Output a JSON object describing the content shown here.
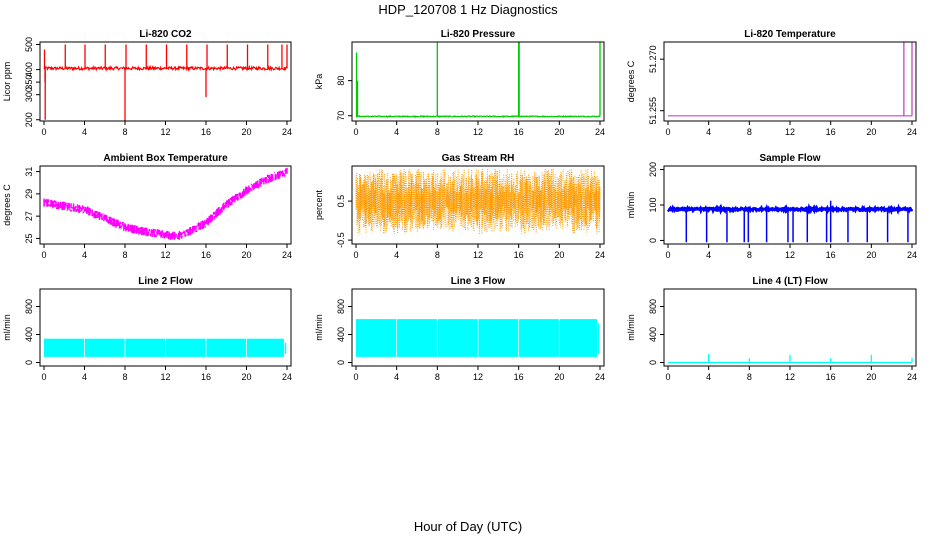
{
  "figure": {
    "title": "HDP_120708  1 Hz Diagnostics",
    "xlabel": "Hour of Day (UTC)"
  },
  "chart_data": [
    {
      "type": "line",
      "title": "Li-820 CO2",
      "ylabel": "Licor ppm",
      "color": "#ff0000",
      "xlim": [
        0,
        24
      ],
      "xticks": [
        "0",
        "4",
        "8",
        "12",
        "16",
        "20",
        "24"
      ],
      "ylim": [
        195,
        510
      ],
      "yticks": [
        200,
        300,
        350,
        400,
        500
      ],
      "ytick_labels": [
        "200",
        "300",
        "350",
        "400",
        "500"
      ],
      "baseline": 405,
      "noise": 6,
      "spikes": [
        [
          0.05,
          480
        ],
        [
          0.1,
          350
        ],
        [
          0.12,
          200
        ],
        [
          2.1,
          500
        ],
        [
          4.05,
          500
        ],
        [
          6.05,
          500
        ],
        [
          8.0,
          195
        ],
        [
          8.1,
          500
        ],
        [
          10.1,
          500
        ],
        [
          12.1,
          500
        ],
        [
          14.1,
          500
        ],
        [
          16.0,
          290
        ],
        [
          16.1,
          500
        ],
        [
          18.1,
          500
        ],
        [
          20.1,
          500
        ],
        [
          22.1,
          500
        ],
        [
          23.5,
          500
        ],
        [
          24.0,
          500
        ]
      ]
    },
    {
      "type": "line",
      "title": "Li-820 Pressure",
      "ylabel": "kPa",
      "color": "#00cc00",
      "xlim": [
        0,
        24
      ],
      "xticks": [
        "0",
        "4",
        "8",
        "12",
        "16",
        "20",
        "24"
      ],
      "ylim": [
        68.5,
        91
      ],
      "yticks": [
        70,
        80
      ],
      "ytick_labels": [
        "70",
        "80"
      ],
      "baseline": 69.8,
      "noise": 0.15,
      "spikes": [
        [
          0.05,
          88
        ],
        [
          0.15,
          80
        ],
        [
          8.0,
          91
        ],
        [
          16.0,
          91
        ],
        [
          16.05,
          91
        ],
        [
          24.0,
          91
        ]
      ]
    },
    {
      "type": "line",
      "title": "Li-820 Temperature",
      "ylabel": "degrees C",
      "color": "#cc44cc",
      "xlim": [
        0,
        24
      ],
      "xticks": [
        "0",
        "4",
        "8",
        "12",
        "16",
        "20",
        "24"
      ],
      "ylim": [
        51.252,
        51.275
      ],
      "yticks": [
        51.255,
        51.27
      ],
      "ytick_labels": [
        "51.255",
        "51.270"
      ],
      "baseline": 51.2535,
      "noise": 0,
      "spikes": [
        [
          23.2,
          51.275
        ],
        [
          24.0,
          51.275
        ]
      ]
    },
    {
      "type": "line",
      "title": "Ambient Box Temperature",
      "ylabel": "degrees C",
      "color": "#ff00ff",
      "xlim": [
        0,
        24
      ],
      "xticks": [
        "0",
        "4",
        "8",
        "12",
        "16",
        "20",
        "24"
      ],
      "ylim": [
        24.5,
        31.5
      ],
      "yticks": [
        25,
        27,
        29,
        31
      ],
      "ytick_labels": [
        "25",
        "27",
        "29",
        "31"
      ],
      "curve": [
        [
          0,
          28.2
        ],
        [
          2,
          27.9
        ],
        [
          4,
          27.6
        ],
        [
          6,
          26.8
        ],
        [
          8,
          26.0
        ],
        [
          10,
          25.6
        ],
        [
          12,
          25.3
        ],
        [
          13,
          25.2
        ],
        [
          14,
          25.4
        ],
        [
          16,
          26.4
        ],
        [
          18,
          28.0
        ],
        [
          20,
          29.3
        ],
        [
          22,
          30.3
        ],
        [
          24,
          31.0
        ]
      ],
      "band": 0.8
    },
    {
      "type": "scatter",
      "title": "Gas Stream RH",
      "ylabel": "percent",
      "color": "#ff9900",
      "xlim": [
        0,
        24
      ],
      "xticks": [
        "0",
        "4",
        "8",
        "12",
        "16",
        "20",
        "24"
      ],
      "ylim": [
        -0.6,
        1.4
      ],
      "yticks": [
        -0.5,
        0.5
      ],
      "ytick_labels": [
        "-0.5",
        "0.5"
      ],
      "mid": 0.5,
      "spread": 0.65
    },
    {
      "type": "line",
      "title": "Sample Flow",
      "ylabel": "ml/min",
      "color": "#0000ff",
      "xlim": [
        0,
        24
      ],
      "xticks": [
        "0",
        "4",
        "8",
        "12",
        "16",
        "20",
        "24"
      ],
      "ylim": [
        -10,
        210
      ],
      "yticks": [
        0,
        100,
        200
      ],
      "ytick_labels": [
        "0",
        "100",
        "200"
      ],
      "baseline": 88,
      "noise": 3,
      "dips": [
        1.8,
        3.8,
        5.8,
        7.5,
        7.9,
        9.7,
        11.8,
        12.3,
        13.7,
        15.6,
        16.0,
        17.7,
        19.6,
        21.6,
        23.6
      ]
    },
    {
      "type": "area",
      "title": "Line 2 Flow",
      "ylabel": "ml/min",
      "color": "#00ffff",
      "xlim": [
        0,
        24
      ],
      "xticks": [
        "0",
        "4",
        "8",
        "12",
        "16",
        "20",
        "24"
      ],
      "ylim": [
        -50,
        1050
      ],
      "yticks": [
        0,
        400,
        800
      ],
      "ytick_labels": [
        "0",
        "400",
        "800"
      ],
      "low": 80,
      "high": 340,
      "gaps": [
        4.0,
        8.0,
        12.0,
        16.0,
        20.0
      ]
    },
    {
      "type": "area",
      "title": "Line 3 Flow",
      "ylabel": "ml/min",
      "color": "#00ffff",
      "xlim": [
        0,
        24
      ],
      "xticks": [
        "0",
        "4",
        "8",
        "12",
        "16",
        "20",
        "24"
      ],
      "ylim": [
        -50,
        1050
      ],
      "yticks": [
        0,
        400,
        800
      ],
      "ytick_labels": [
        "0",
        "400",
        "800"
      ],
      "low": 80,
      "high": 620,
      "gaps": [
        4.0,
        8.0,
        12.0,
        16.0,
        20.0
      ]
    },
    {
      "type": "line",
      "title": "Line 4 (LT) Flow",
      "ylabel": "ml/min",
      "color": "#00ffff",
      "xlim": [
        0,
        24
      ],
      "xticks": [
        "0",
        "4",
        "8",
        "12",
        "16",
        "20",
        "24"
      ],
      "ylim": [
        -50,
        1050
      ],
      "yticks": [
        0,
        400,
        800
      ],
      "ytick_labels": [
        "0",
        "400",
        "800"
      ],
      "baseline": 0,
      "noise": 0,
      "spikes": [
        [
          4.0,
          120
        ],
        [
          8.0,
          60
        ],
        [
          12.0,
          110
        ],
        [
          16.0,
          60
        ],
        [
          20.0,
          110
        ],
        [
          24.0,
          70
        ]
      ]
    }
  ]
}
